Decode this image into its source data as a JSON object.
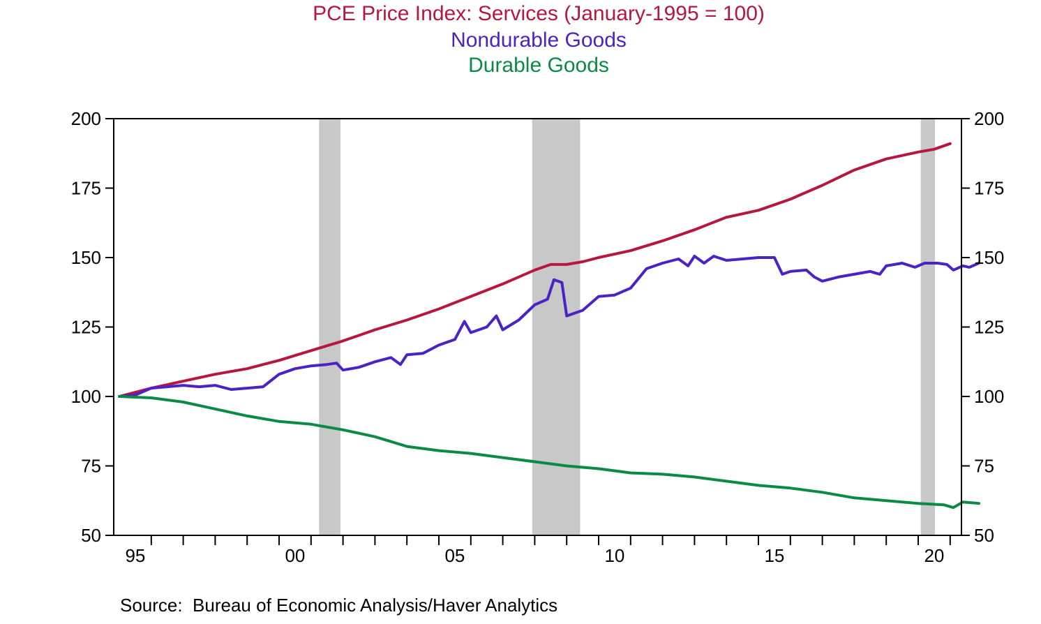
{
  "titles": {
    "line1": "PCE Price Index: Services (January-1995 = 100)",
    "line2": "Nondurable Goods",
    "line3": "Durable Goods"
  },
  "source": "Source:  Bureau of Economic Analysis/Haver Analytics",
  "colors": {
    "services": "#b5173e",
    "nondurable": "#4b22c4",
    "durable": "#0b8a45",
    "recession": "#c8c8c8"
  },
  "chart_data": {
    "type": "line",
    "title": "PCE Price Index: Services (January-1995 = 100)",
    "xlabel": "",
    "ylabel": "",
    "xlim": [
      1995.0,
      2021.0
    ],
    "ylim": [
      50,
      200
    ],
    "yticks": [
      50,
      75,
      100,
      125,
      150,
      175,
      200
    ],
    "yticks_right": [
      50,
      75,
      100,
      125,
      150,
      175,
      200
    ],
    "xtick_labels": [
      {
        "year": 1995,
        "label": "95"
      },
      {
        "year": 2000,
        "label": "00"
      },
      {
        "year": 2005,
        "label": "05"
      },
      {
        "year": 2010,
        "label": "10"
      },
      {
        "year": 2015,
        "label": "15"
      },
      {
        "year": 2020,
        "label": "20"
      }
    ],
    "grid": false,
    "recession_shading": [
      [
        2001.25,
        2001.92
      ],
      [
        2007.92,
        2009.42
      ],
      [
        2020.08,
        2021.0
      ]
    ],
    "series": [
      {
        "name": "PCE Price Index: Services",
        "points": [
          [
            1995.0,
            100
          ],
          [
            1996.0,
            103
          ],
          [
            1997.0,
            105.5
          ],
          [
            1998.0,
            108
          ],
          [
            1999.0,
            110
          ],
          [
            2000.0,
            113
          ],
          [
            2001.0,
            116.5
          ],
          [
            2002.0,
            120
          ],
          [
            2003.0,
            124
          ],
          [
            2004.0,
            127.5
          ],
          [
            2005.0,
            131.5
          ],
          [
            2006.0,
            136
          ],
          [
            2007.0,
            140.5
          ],
          [
            2008.0,
            145.5
          ],
          [
            2008.5,
            147.5
          ],
          [
            2009.0,
            147.5
          ],
          [
            2009.5,
            148.5
          ],
          [
            2010.0,
            150
          ],
          [
            2011.0,
            152.5
          ],
          [
            2012.0,
            156
          ],
          [
            2013.0,
            160
          ],
          [
            2014.0,
            164.5
          ],
          [
            2015.0,
            167
          ],
          [
            2016.0,
            171
          ],
          [
            2017.0,
            176
          ],
          [
            2018.0,
            181.5
          ],
          [
            2019.0,
            185.5
          ],
          [
            2020.0,
            188
          ],
          [
            2020.5,
            189
          ],
          [
            2021.0,
            191
          ]
        ]
      },
      {
        "name": "Nondurable Goods",
        "points": [
          [
            1995.0,
            100
          ],
          [
            1995.5,
            100.5
          ],
          [
            1996.0,
            103
          ],
          [
            1996.5,
            103.5
          ],
          [
            1997.0,
            104
          ],
          [
            1997.5,
            103.5
          ],
          [
            1998.0,
            104
          ],
          [
            1998.5,
            102.5
          ],
          [
            1999.0,
            103
          ],
          [
            1999.5,
            103.5
          ],
          [
            2000.0,
            108
          ],
          [
            2000.5,
            110
          ],
          [
            2001.0,
            111
          ],
          [
            2001.5,
            111.5
          ],
          [
            2001.8,
            112
          ],
          [
            2002.0,
            109.5
          ],
          [
            2002.5,
            110.5
          ],
          [
            2003.0,
            112.5
          ],
          [
            2003.5,
            114
          ],
          [
            2003.8,
            111.5
          ],
          [
            2004.0,
            115
          ],
          [
            2004.5,
            115.5
          ],
          [
            2005.0,
            118.5
          ],
          [
            2005.5,
            120.5
          ],
          [
            2005.8,
            127
          ],
          [
            2006.0,
            123
          ],
          [
            2006.5,
            125
          ],
          [
            2006.8,
            129
          ],
          [
            2007.0,
            124
          ],
          [
            2007.5,
            127.5
          ],
          [
            2008.0,
            133
          ],
          [
            2008.4,
            135
          ],
          [
            2008.6,
            142
          ],
          [
            2008.85,
            141
          ],
          [
            2009.0,
            129
          ],
          [
            2009.5,
            131
          ],
          [
            2010.0,
            136
          ],
          [
            2010.5,
            136.5
          ],
          [
            2011.0,
            139
          ],
          [
            2011.5,
            146
          ],
          [
            2012.0,
            148
          ],
          [
            2012.5,
            149.5
          ],
          [
            2012.8,
            147
          ],
          [
            2013.0,
            150.5
          ],
          [
            2013.3,
            148
          ],
          [
            2013.6,
            150.5
          ],
          [
            2014.0,
            149
          ],
          [
            2014.5,
            149.5
          ],
          [
            2015.0,
            150
          ],
          [
            2015.5,
            150
          ],
          [
            2015.75,
            144
          ],
          [
            2016.0,
            145
          ],
          [
            2016.5,
            145.5
          ],
          [
            2016.75,
            143
          ],
          [
            2017.0,
            141.5
          ],
          [
            2017.5,
            143
          ],
          [
            2018.0,
            144
          ],
          [
            2018.5,
            145
          ],
          [
            2018.8,
            144
          ],
          [
            2019.0,
            147
          ],
          [
            2019.5,
            148
          ],
          [
            2019.9,
            146.5
          ],
          [
            2020.2,
            148
          ],
          [
            2020.6,
            148
          ],
          [
            2020.9,
            147.5
          ],
          [
            2021.1,
            145.5
          ],
          [
            2021.4,
            147
          ],
          [
            2021.6,
            146.5
          ],
          [
            2021.9,
            148
          ]
        ]
      },
      {
        "name": "Durable Goods",
        "points": [
          [
            1995.0,
            100
          ],
          [
            1996.0,
            99.5
          ],
          [
            1997.0,
            98
          ],
          [
            1998.0,
            95.5
          ],
          [
            1999.0,
            93
          ],
          [
            2000.0,
            91
          ],
          [
            2001.0,
            90
          ],
          [
            2002.0,
            88
          ],
          [
            2003.0,
            85.5
          ],
          [
            2004.0,
            82
          ],
          [
            2005.0,
            80.5
          ],
          [
            2006.0,
            79.5
          ],
          [
            2007.0,
            78
          ],
          [
            2008.0,
            76.5
          ],
          [
            2009.0,
            75
          ],
          [
            2010.0,
            74
          ],
          [
            2011.0,
            72.5
          ],
          [
            2012.0,
            72
          ],
          [
            2013.0,
            71
          ],
          [
            2014.0,
            69.5
          ],
          [
            2015.0,
            68
          ],
          [
            2016.0,
            67
          ],
          [
            2017.0,
            65.5
          ],
          [
            2018.0,
            63.5
          ],
          [
            2019.0,
            62.5
          ],
          [
            2020.0,
            61.5
          ],
          [
            2020.8,
            61
          ],
          [
            2021.1,
            60
          ],
          [
            2021.4,
            62
          ],
          [
            2021.9,
            61.5
          ]
        ]
      }
    ]
  }
}
